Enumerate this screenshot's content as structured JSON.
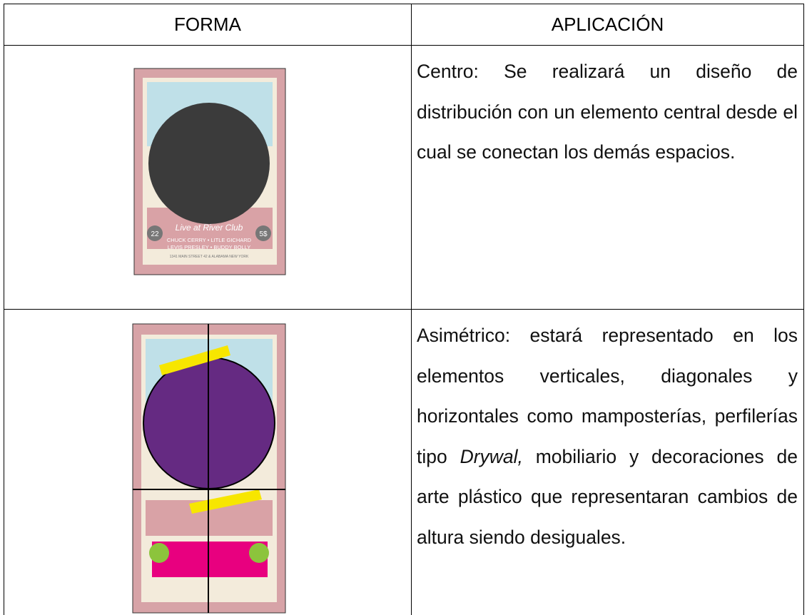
{
  "table": {
    "header": [
      "FORMA",
      "APLICACIÓN"
    ],
    "rows": [
      {
        "text": "Centro: Se realizará un diseño de distribución con un elemento central desde el cual se conectan los demás espacios."
      },
      {
        "text_parts": [
          "Asimétrico: estará representado en los elementos verticales, diagonales y horizontales como mamposterías, perfilerías tipo ",
          "Drywal,",
          " mobiliario y decoraciones de arte plástico que representaran cambios de altura siendo desiguales."
        ]
      }
    ]
  },
  "poster": {
    "left_badge": "22",
    "right_badge": "5$",
    "script_title": "Live at River Club",
    "line1": "CHUCK CERRY • LITLE GICHARD",
    "line2": "LEVIS PRESLEY • BUDDY BOLLY",
    "line3": "1341 MAIN STREET 42 & ALABAMA NEW YORK"
  }
}
